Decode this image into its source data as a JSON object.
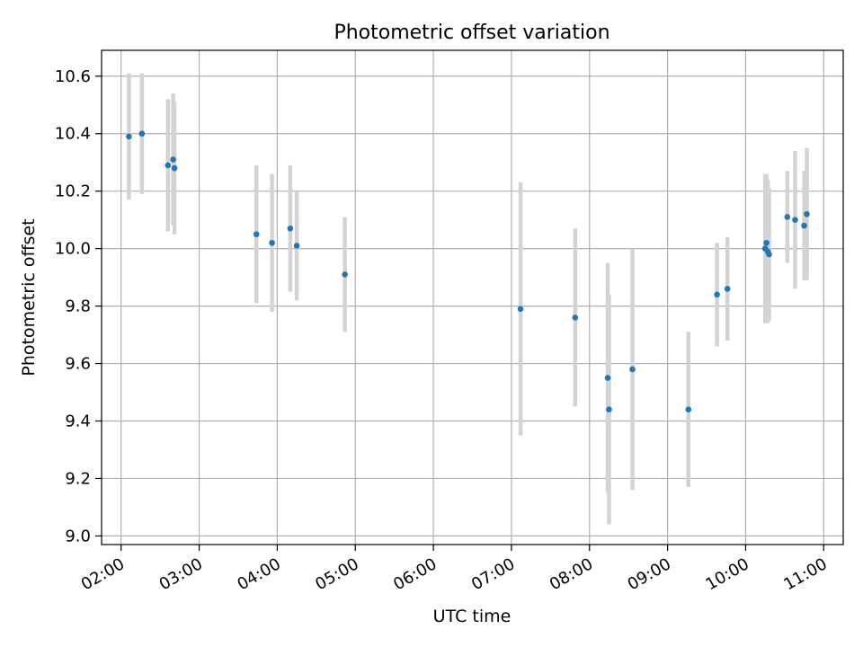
{
  "chart_data": {
    "type": "scatter",
    "title": "Photometric offset variation",
    "xlabel": "UTC time",
    "ylabel": "Photometric offset",
    "x_axis": "time",
    "xlim": [
      "01:45",
      "11:15"
    ],
    "ylim": [
      8.97,
      10.69
    ],
    "x_ticks": [
      "02:00",
      "03:00",
      "04:00",
      "05:00",
      "06:00",
      "07:00",
      "08:00",
      "09:00",
      "10:00",
      "11:00"
    ],
    "y_ticks": [
      "9.0",
      "9.2",
      "9.4",
      "9.6",
      "9.8",
      "10.0",
      "10.2",
      "10.4",
      "10.6"
    ],
    "grid": true,
    "point_color": "#1f77b4",
    "errorbar_color": "#d3d3d3",
    "series": [
      {
        "points": [
          {
            "t": "02:06",
            "y": 10.39,
            "err": 0.22
          },
          {
            "t": "02:16",
            "y": 10.4,
            "err": 0.21
          },
          {
            "t": "02:36",
            "y": 10.29,
            "err": 0.23
          },
          {
            "t": "02:40",
            "y": 10.31,
            "err": 0.23
          },
          {
            "t": "02:41",
            "y": 10.28,
            "err": 0.23
          },
          {
            "t": "03:44",
            "y": 10.05,
            "err": 0.24
          },
          {
            "t": "03:56",
            "y": 10.02,
            "err": 0.24
          },
          {
            "t": "04:10",
            "y": 10.07,
            "err": 0.22
          },
          {
            "t": "04:15",
            "y": 10.01,
            "err": 0.19
          },
          {
            "t": "04:52",
            "y": 9.91,
            "err": 0.2
          },
          {
            "t": "07:07",
            "y": 9.79,
            "err": 0.44
          },
          {
            "t": "07:49",
            "y": 9.76,
            "err": 0.31
          },
          {
            "t": "08:14",
            "y": 9.55,
            "err": 0.4
          },
          {
            "t": "08:15",
            "y": 9.44,
            "err": 0.4
          },
          {
            "t": "08:33",
            "y": 9.58,
            "err": 0.42
          },
          {
            "t": "09:16",
            "y": 9.44,
            "err": 0.27
          },
          {
            "t": "09:38",
            "y": 9.84,
            "err": 0.18
          },
          {
            "t": "09:46",
            "y": 9.86,
            "err": 0.18
          },
          {
            "t": "10:15",
            "y": 10.0,
            "err": 0.26
          },
          {
            "t": "10:16",
            "y": 10.02,
            "err": 0.24
          },
          {
            "t": "10:17",
            "y": 9.99,
            "err": 0.25
          },
          {
            "t": "10:18",
            "y": 9.98,
            "err": 0.23
          },
          {
            "t": "10:32",
            "y": 10.11,
            "err": 0.16
          },
          {
            "t": "10:38",
            "y": 10.1,
            "err": 0.24
          },
          {
            "t": "10:45",
            "y": 10.08,
            "err": 0.19
          },
          {
            "t": "10:47",
            "y": 10.12,
            "err": 0.23
          }
        ]
      }
    ]
  }
}
